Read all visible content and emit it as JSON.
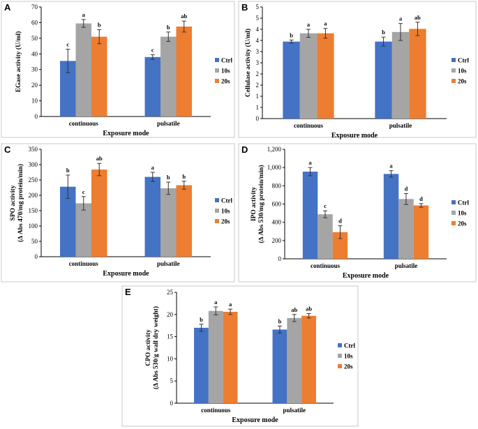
{
  "colors": {
    "Ctrl": "#4472c4",
    "10s": "#a5a5a5",
    "20s": "#ed7d31"
  },
  "chart_data": [
    {
      "panel": "A",
      "type": "bar",
      "categories": [
        "continuous",
        "pulsatile"
      ],
      "xlabel": "Exposure mode",
      "ylabel": [
        "EGase activity (U/ml)"
      ],
      "ylim": [
        0,
        70
      ],
      "yticks": [
        0,
        10,
        20,
        30,
        40,
        50,
        60,
        70
      ],
      "ytick_labels": [
        "0",
        "10",
        "20",
        "30",
        "40",
        "50",
        "60",
        "70"
      ],
      "series": [
        {
          "name": "Ctrl",
          "values": [
            35.5,
            38
          ],
          "errors": [
            7.5,
            1.5
          ],
          "labels": [
            "c",
            "c"
          ]
        },
        {
          "name": "10s",
          "values": [
            59.5,
            51
          ],
          "errors": [
            2.5,
            3
          ],
          "labels": [
            "a",
            "b"
          ]
        },
        {
          "name": "20s",
          "values": [
            51,
            57.5
          ],
          "errors": [
            4.5,
            3.5
          ],
          "labels": [
            "b",
            "ab"
          ]
        }
      ]
    },
    {
      "panel": "B",
      "type": "bar",
      "categories": [
        "continuous",
        "pulsatile"
      ],
      "xlabel": "Exposure mode",
      "ylabel": [
        "Cellulase activity (U/ml)"
      ],
      "ylim": [
        0,
        5
      ],
      "yticks": [
        0,
        0.5,
        1,
        1.5,
        2,
        2.5,
        3,
        3.5,
        4,
        4.5,
        5
      ],
      "ytick_labels": [
        "0",
        "1",
        "1",
        "2",
        "2",
        "3",
        "3",
        "4",
        "4",
        "5",
        "5"
      ],
      "series": [
        {
          "name": "Ctrl",
          "values": [
            3.45,
            3.45
          ],
          "errors": [
            0.07,
            0.2
          ],
          "labels": [
            "b",
            "b"
          ]
        },
        {
          "name": "10s",
          "values": [
            3.82,
            3.88
          ],
          "errors": [
            0.18,
            0.38
          ],
          "labels": [
            "a",
            "a"
          ]
        },
        {
          "name": "20s",
          "values": [
            3.82,
            4.02
          ],
          "errors": [
            0.22,
            0.3
          ],
          "labels": [
            "a",
            "ab"
          ]
        }
      ]
    },
    {
      "panel": "C",
      "type": "bar",
      "categories": [
        "continuous",
        "pulsatile"
      ],
      "xlabel": "Exposure mode",
      "ylabel": [
        "SPO activity",
        "(∆ Abs 470/mg protein/min)"
      ],
      "ylim": [
        0,
        350
      ],
      "yticks": [
        0,
        50,
        100,
        150,
        200,
        250,
        300,
        350
      ],
      "ytick_labels": [
        "0",
        "50",
        "100",
        "150",
        "200",
        "250",
        "300",
        "350"
      ],
      "series": [
        {
          "name": "Ctrl",
          "values": [
            228,
            260
          ],
          "errors": [
            38,
            15
          ],
          "labels": [
            "b",
            "a"
          ]
        },
        {
          "name": "10s",
          "values": [
            174,
            223
          ],
          "errors": [
            22,
            20
          ],
          "labels": [
            "c",
            "b"
          ]
        },
        {
          "name": "20s",
          "values": [
            284,
            233
          ],
          "errors": [
            20,
            13
          ],
          "labels": [
            "ab",
            "b"
          ]
        }
      ]
    },
    {
      "panel": "D",
      "type": "bar",
      "categories": [
        "continuous",
        "pulsatile"
      ],
      "xlabel": "Exposure mode",
      "ylabel": [
        "IPO activity",
        "(∆ Abs 530/mg protein/min)"
      ],
      "ylim": [
        0,
        1200
      ],
      "yticks": [
        0,
        200,
        400,
        600,
        800,
        1000,
        1200
      ],
      "ytick_labels": [
        "0",
        "200",
        "400",
        "600",
        "800",
        "1,000",
        "1,200"
      ],
      "series": [
        {
          "name": "Ctrl",
          "values": [
            955,
            930
          ],
          "errors": [
            45,
            35
          ],
          "labels": [
            "a",
            "a"
          ]
        },
        {
          "name": "10s",
          "values": [
            488,
            655
          ],
          "errors": [
            38,
            60
          ],
          "labels": [
            "c",
            "d"
          ]
        },
        {
          "name": "20s",
          "values": [
            292,
            585
          ],
          "errors": [
            70,
            20
          ],
          "labels": [
            "d",
            "d"
          ]
        }
      ]
    },
    {
      "panel": "E",
      "type": "bar",
      "categories": [
        "continuous",
        "pulsatile"
      ],
      "xlabel": "Exposure mode",
      "ylabel": [
        "CPO activity",
        "(∆ Abs 530/g wall dry weight)"
      ],
      "ylim": [
        0,
        25
      ],
      "yticks": [
        0,
        5,
        10,
        15,
        20,
        25
      ],
      "ytick_labels": [
        "0",
        "5",
        "10",
        "15",
        "20",
        "25"
      ],
      "series": [
        {
          "name": "Ctrl",
          "values": [
            17,
            16.6
          ],
          "errors": [
            0.8,
            0.8
          ],
          "labels": [
            "b",
            "b"
          ]
        },
        {
          "name": "10s",
          "values": [
            20.8,
            19.2
          ],
          "errors": [
            0.9,
            0.8
          ],
          "labels": [
            "a",
            "ab"
          ]
        },
        {
          "name": "20s",
          "values": [
            20.6,
            19.7
          ],
          "errors": [
            0.6,
            0.5
          ],
          "labels": [
            "a",
            "ab"
          ]
        }
      ]
    }
  ]
}
